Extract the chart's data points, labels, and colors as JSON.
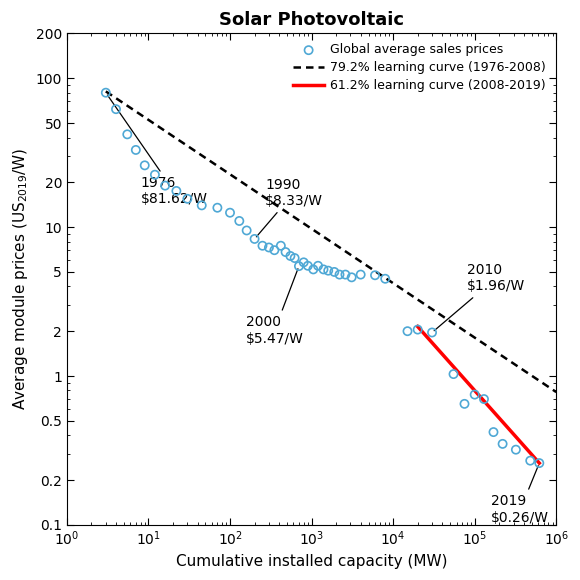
{
  "title": "Solar Photovoltaic",
  "xlabel": "Cumulative installed capacity (MW)",
  "ylabel": "Average module prices ($US$_{2019}$/W)",
  "xlim": [
    1,
    1000000
  ],
  "ylim": [
    0.1,
    200
  ],
  "scatter_xy": [
    [
      3.0,
      80.0
    ],
    [
      4.0,
      62.0
    ],
    [
      5.5,
      42.0
    ],
    [
      7.0,
      33.0
    ],
    [
      9.0,
      26.0
    ],
    [
      12.0,
      22.5
    ],
    [
      16.0,
      19.0
    ],
    [
      22.0,
      17.5
    ],
    [
      30.0,
      15.5
    ],
    [
      45.0,
      14.0
    ],
    [
      70.0,
      13.5
    ],
    [
      100.0,
      12.5
    ],
    [
      130.0,
      11.0
    ],
    [
      160.0,
      9.5
    ],
    [
      200.0,
      8.33
    ],
    [
      250.0,
      7.5
    ],
    [
      300.0,
      7.3
    ],
    [
      350.0,
      7.0
    ],
    [
      420.0,
      7.5
    ],
    [
      480.0,
      6.8
    ],
    [
      550.0,
      6.4
    ],
    [
      620.0,
      6.2
    ],
    [
      700.0,
      5.47
    ],
    [
      800.0,
      5.8
    ],
    [
      900.0,
      5.5
    ],
    [
      1050.0,
      5.2
    ],
    [
      1200.0,
      5.5
    ],
    [
      1400.0,
      5.2
    ],
    [
      1600.0,
      5.1
    ],
    [
      1900.0,
      5.0
    ],
    [
      2200.0,
      4.8
    ],
    [
      2600.0,
      4.8
    ],
    [
      3100.0,
      4.6
    ],
    [
      4000.0,
      4.8
    ],
    [
      6000.0,
      4.75
    ],
    [
      8000.0,
      4.5
    ],
    [
      15000.0,
      2.0
    ],
    [
      20000.0,
      2.05
    ],
    [
      30000.0,
      1.96
    ],
    [
      55000.0,
      1.03
    ],
    [
      75000.0,
      0.65
    ],
    [
      100000.0,
      0.75
    ],
    [
      130000.0,
      0.7
    ],
    [
      170000.0,
      0.42
    ],
    [
      220000.0,
      0.35
    ],
    [
      320000.0,
      0.32
    ],
    [
      480000.0,
      0.27
    ],
    [
      620000.0,
      0.26
    ]
  ],
  "dotted_line": {
    "x_start": 3.0,
    "x_end": 1000000.0,
    "y_start": 81.62,
    "y_end": 0.78,
    "color": "black",
    "linewidth": 1.8,
    "label": "79.2% learning curve (1976-2008)"
  },
  "red_line": {
    "x_start": 20000.0,
    "x_end": 620000.0,
    "y_start": 2.15,
    "y_end": 0.26,
    "color": "red",
    "linewidth": 2.5,
    "label": "61.2% learning curve (2008-2019)"
  },
  "scatter_color": "#4fa8d5",
  "scatter_size": 35,
  "background_color": "white",
  "yticks": [
    0.1,
    0.2,
    0.5,
    1.0,
    2.0,
    5.0,
    10.0,
    20.0,
    50.0,
    100.0,
    200.0
  ],
  "xticks": [
    1,
    10,
    100,
    1000,
    10000,
    100000,
    1000000
  ]
}
